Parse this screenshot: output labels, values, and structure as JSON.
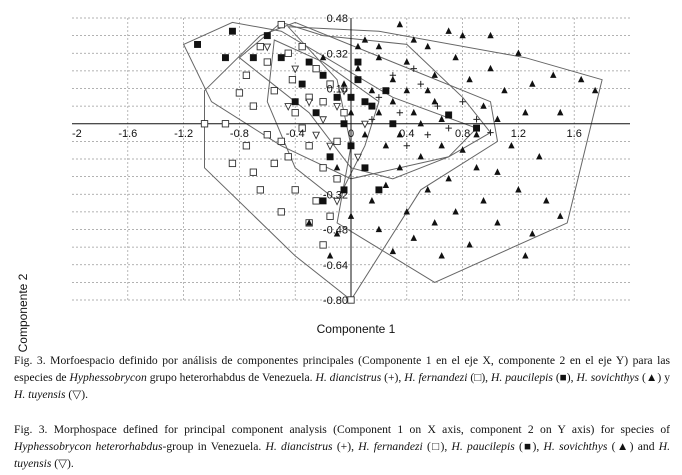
{
  "figure": {
    "xlabel": "Componente 1",
    "ylabel": "Componente 2",
    "x_ticks": [
      "-2",
      "-1.6",
      "-1.2",
      "-0.8",
      "-0.4",
      "0",
      "0.4",
      "0.8",
      "1.2",
      "1.6"
    ],
    "y_ticks": [
      "0.48",
      "0.32",
      "0.16",
      "-0.32",
      "-0.48",
      "-0.64",
      "-0.80"
    ]
  },
  "chart_data": {
    "type": "scatter",
    "xlabel": "Componente 1",
    "ylabel": "Componente 2",
    "xlim": [
      -2,
      2.0
    ],
    "ylim": [
      -0.8,
      0.48
    ],
    "grid": true,
    "series": [
      {
        "name": "H. diancistrus",
        "marker": "+",
        "color": "#333333",
        "points": [
          [
            0.2,
            0.12
          ],
          [
            0.35,
            0.05
          ],
          [
            0.5,
            0.18
          ],
          [
            0.62,
            0.08
          ],
          [
            0.7,
            -0.02
          ],
          [
            0.55,
            -0.05
          ],
          [
            0.4,
            -0.1
          ],
          [
            0.8,
            0.1
          ],
          [
            0.9,
            0.02
          ],
          [
            0.3,
            0.22
          ],
          [
            0.15,
            0.02
          ],
          [
            0.45,
            0.25
          ],
          [
            1.0,
            -0.04
          ]
        ]
      },
      {
        "name": "H. fernandezi",
        "marker": "open-square",
        "color": "#333333",
        "points": [
          [
            -0.5,
            0.45
          ],
          [
            -0.6,
            0.28
          ],
          [
            -0.75,
            0.22
          ],
          [
            -0.8,
            0.14
          ],
          [
            -0.7,
            0.08
          ],
          [
            -0.55,
            0.15
          ],
          [
            -0.42,
            0.2
          ],
          [
            -0.4,
            0.05
          ],
          [
            -0.35,
            -0.02
          ],
          [
            -0.6,
            -0.05
          ],
          [
            -0.75,
            -0.1
          ],
          [
            -0.55,
            -0.18
          ],
          [
            -0.45,
            -0.15
          ],
          [
            -0.3,
            -0.1
          ],
          [
            -0.2,
            -0.2
          ],
          [
            -0.1,
            -0.25
          ],
          [
            -0.4,
            -0.3
          ],
          [
            -0.25,
            -0.35
          ],
          [
            -0.5,
            -0.4
          ],
          [
            -0.3,
            -0.45
          ],
          [
            -0.65,
            -0.3
          ],
          [
            -0.85,
            -0.18
          ],
          [
            -0.9,
            0.0
          ],
          [
            -0.65,
            0.35
          ],
          [
            -0.45,
            0.32
          ],
          [
            -0.2,
            0.1
          ],
          [
            -0.15,
            0.18
          ],
          [
            -0.05,
            0.05
          ],
          [
            -0.25,
            0.25
          ],
          [
            -0.5,
            -0.08
          ],
          [
            -0.1,
            -0.08
          ],
          [
            -0.3,
            0.12
          ],
          [
            -0.7,
            -0.22
          ],
          [
            -0.35,
            0.35
          ],
          [
            -1.05,
            0.0
          ],
          [
            0.0,
            -0.8
          ],
          [
            -0.2,
            -0.55
          ],
          [
            -0.15,
            -0.42
          ]
        ]
      },
      {
        "name": "H. paucilepis",
        "marker": "filled-square",
        "color": "#111111",
        "points": [
          [
            -1.1,
            0.36
          ],
          [
            -0.85,
            0.42
          ],
          [
            -0.9,
            0.3
          ],
          [
            -0.6,
            0.4
          ],
          [
            -0.5,
            0.3
          ],
          [
            -0.3,
            0.28
          ],
          [
            -0.2,
            0.22
          ],
          [
            -0.1,
            0.12
          ],
          [
            0.05,
            0.2
          ],
          [
            0.1,
            0.1
          ],
          [
            -0.05,
            0.0
          ],
          [
            0.0,
            -0.1
          ],
          [
            0.1,
            -0.2
          ],
          [
            -0.15,
            -0.15
          ],
          [
            -0.25,
            0.05
          ],
          [
            0.2,
            -0.3
          ],
          [
            0.3,
            0.0
          ],
          [
            -0.4,
            0.1
          ],
          [
            -0.7,
            0.3
          ],
          [
            -0.35,
            0.18
          ],
          [
            0.05,
            0.28
          ],
          [
            0.25,
            0.15
          ],
          [
            0.7,
            0.04
          ],
          [
            0.9,
            -0.02
          ],
          [
            -0.2,
            -0.35
          ],
          [
            0.15,
            0.08
          ],
          [
            -0.05,
            -0.3
          ],
          [
            0.0,
            0.12
          ]
        ]
      },
      {
        "name": "H. sovichthys",
        "marker": "filled-triangle",
        "color": "#111111",
        "points": [
          [
            0.35,
            0.45
          ],
          [
            0.1,
            0.38
          ],
          [
            0.2,
            0.3
          ],
          [
            0.4,
            0.28
          ],
          [
            0.55,
            0.35
          ],
          [
            0.6,
            0.22
          ],
          [
            0.75,
            0.3
          ],
          [
            0.85,
            0.2
          ],
          [
            1.0,
            0.25
          ],
          [
            1.1,
            0.15
          ],
          [
            1.2,
            0.32
          ],
          [
            1.3,
            0.18
          ],
          [
            1.45,
            0.22
          ],
          [
            1.65,
            0.2
          ],
          [
            1.75,
            0.15
          ],
          [
            1.25,
            0.05
          ],
          [
            1.05,
            0.02
          ],
          [
            0.9,
            -0.05
          ],
          [
            0.8,
            -0.12
          ],
          [
            0.65,
            -0.1
          ],
          [
            0.5,
            -0.15
          ],
          [
            0.35,
            -0.2
          ],
          [
            0.25,
            -0.28
          ],
          [
            0.15,
            -0.35
          ],
          [
            0.4,
            -0.4
          ],
          [
            0.55,
            -0.3
          ],
          [
            0.7,
            -0.25
          ],
          [
            0.9,
            -0.2
          ],
          [
            1.05,
            -0.22
          ],
          [
            1.2,
            -0.3
          ],
          [
            1.4,
            -0.35
          ],
          [
            1.5,
            -0.42
          ],
          [
            1.3,
            -0.5
          ],
          [
            1.05,
            -0.45
          ],
          [
            0.85,
            -0.55
          ],
          [
            0.65,
            -0.6
          ],
          [
            0.45,
            -0.52
          ],
          [
            0.2,
            -0.48
          ],
          [
            0.0,
            -0.42
          ],
          [
            -0.1,
            -0.5
          ],
          [
            0.15,
            0.15
          ],
          [
            0.3,
            0.1
          ],
          [
            0.45,
            0.05
          ],
          [
            0.6,
            0.1
          ],
          [
            0.3,
            0.2
          ],
          [
            0.05,
            0.25
          ],
          [
            -0.05,
            0.18
          ],
          [
            0.25,
            -0.1
          ],
          [
            0.1,
            -0.05
          ],
          [
            0.2,
            0.35
          ],
          [
            0.45,
            0.38
          ],
          [
            0.7,
            0.42
          ],
          [
            0.95,
            0.08
          ],
          [
            1.15,
            -0.1
          ],
          [
            0.75,
            -0.4
          ],
          [
            0.6,
            -0.45
          ],
          [
            0.3,
            -0.58
          ],
          [
            1.25,
            -0.6
          ],
          [
            0.55,
            0.15
          ],
          [
            -0.2,
            0.3
          ],
          [
            -0.3,
            -0.45
          ],
          [
            -0.15,
            -0.6
          ],
          [
            0.35,
            -0.05
          ],
          [
            0.5,
            0.0
          ],
          [
            0.8,
            0.4
          ],
          [
            1.0,
            0.4
          ],
          [
            0.4,
            0.15
          ],
          [
            0.65,
            0.02
          ],
          [
            -0.1,
            -0.2
          ],
          [
            0.0,
            0.05
          ],
          [
            1.5,
            0.05
          ],
          [
            1.35,
            -0.15
          ],
          [
            0.95,
            -0.35
          ],
          [
            0.2,
            0.05
          ],
          [
            0.05,
            0.35
          ]
        ]
      },
      {
        "name": "H. tuyensis",
        "marker": "open-triangle-down",
        "color": "#333333",
        "points": [
          [
            -0.6,
            0.35
          ],
          [
            -0.4,
            0.25
          ],
          [
            -0.3,
            0.1
          ],
          [
            -0.2,
            0.02
          ],
          [
            -0.15,
            -0.1
          ],
          [
            -0.1,
            -0.35
          ],
          [
            -0.05,
            0.15
          ],
          [
            -0.45,
            0.08
          ],
          [
            -0.25,
            -0.05
          ],
          [
            0.05,
            -0.15
          ],
          [
            -0.1,
            0.08
          ],
          [
            0.1,
            0.0
          ]
        ]
      }
    ],
    "polygons": [
      [
        [
          -0.5,
          0.46
        ],
        [
          -0.2,
          0.4
        ],
        [
          0.4,
          0.36
        ],
        [
          0.8,
          0.12
        ],
        [
          1.0,
          -0.04
        ],
        [
          0.7,
          -0.15
        ],
        [
          0.3,
          -0.25
        ],
        [
          0.0,
          -0.2
        ],
        [
          -0.3,
          0.05
        ],
        [
          -0.6,
          0.2
        ],
        [
          -0.8,
          0.3
        ]
      ],
      [
        [
          -1.2,
          0.36
        ],
        [
          -0.85,
          0.46
        ],
        [
          -0.5,
          0.42
        ],
        [
          0.3,
          0.12
        ],
        [
          0.9,
          -0.02
        ],
        [
          0.7,
          -0.15
        ],
        [
          0.0,
          -0.25
        ],
        [
          -0.5,
          -0.1
        ],
        [
          -1.0,
          0.1
        ]
      ],
      [
        [
          -0.45,
          0.44
        ],
        [
          0.2,
          0.42
        ],
        [
          1.25,
          0.3
        ],
        [
          1.8,
          0.2
        ],
        [
          1.55,
          -0.45
        ],
        [
          0.6,
          -0.72
        ],
        [
          -0.1,
          -0.45
        ],
        [
          0.0,
          -0.1
        ],
        [
          -0.1,
          0.2
        ]
      ],
      [
        [
          -0.55,
          0.38
        ],
        [
          -0.2,
          0.28
        ],
        [
          0.2,
          0.1
        ],
        [
          0.1,
          -0.1
        ],
        [
          -0.1,
          -0.35
        ],
        [
          -0.4,
          -0.2
        ],
        [
          -0.6,
          0.1
        ]
      ],
      [
        [
          -0.65,
          0.4
        ],
        [
          -0.4,
          0.46
        ],
        [
          0.3,
          0.28
        ],
        [
          1.0,
          0.1
        ],
        [
          1.05,
          -0.08
        ],
        [
          0.5,
          -0.3
        ],
        [
          0.0,
          -0.8
        ],
        [
          -0.4,
          -0.6
        ],
        [
          -1.05,
          -0.2
        ],
        [
          -1.05,
          0.15
        ]
      ]
    ]
  },
  "caption_es": {
    "p1": "Fig. 3. Morfoespacio definido por análisis de componentes principales (Componente 1 en el eje X, componente 2 en el eje Y) para las especies de ",
    "genus": "Hyphessobrycon",
    "p2": " grupo heterorhabdus de Venezuela. ",
    "sp1": "H. diancistrus",
    "s1": " (+), ",
    "sp2": "H. fernandezi",
    "s2": " (□), ",
    "sp3": "H. paucilepis",
    "s3": " (■), ",
    "sp4": "H. sovichthys",
    "s4": " (▲) y ",
    "sp5": "H. tuyensis",
    "s5": " (▽)."
  },
  "caption_en": {
    "p1": "Fig. 3. Morphospace defined for principal component analysis (Component 1 on X axis, component 2 on Y axis) for species of ",
    "genus": "Hyphessobrycon heterorhabdus",
    "p2": "-group in Venezuela. ",
    "sp1": "H. diancistrus",
    "s1": " (+), ",
    "sp2": "H. fernandezi",
    "s2": " (□), ",
    "sp3": "H. paucilepis",
    "s3": " (■), ",
    "sp4": "H. sovichthys",
    "s4": " (▲) and ",
    "sp5": "H. tuyensis",
    "s5": " (▽)."
  }
}
